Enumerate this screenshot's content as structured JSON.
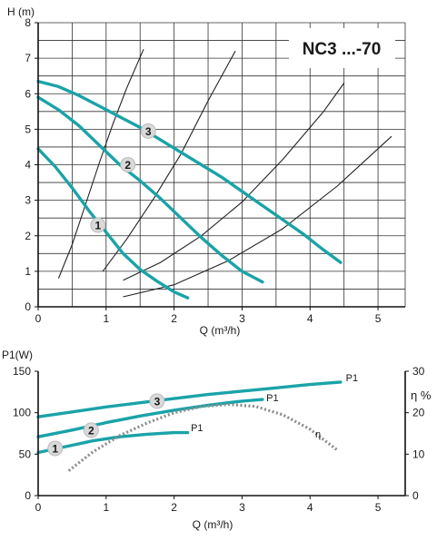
{
  "colors": {
    "pump": "#1aa3a8",
    "efficiency": "#8c8c8c",
    "system": "#222222",
    "marker_fill": "#d9d9d9"
  },
  "chart_data": [
    {
      "type": "line",
      "title": "NC3 ...-70",
      "xlabel": "Q (m³/h)",
      "ylabel": "H (m)",
      "xlim": [
        0,
        5.4
      ],
      "ylim": [
        0,
        8
      ],
      "xticks": [
        0,
        1,
        2,
        3,
        4,
        5
      ],
      "yticks": [
        0,
        1,
        2,
        3,
        4,
        5,
        6,
        7,
        8
      ],
      "grid": true,
      "series": [
        {
          "name": "1",
          "x": [
            0,
            0.25,
            0.5,
            0.75,
            1.0,
            1.25,
            1.5,
            1.75,
            2.0,
            2.2
          ],
          "y": [
            4.45,
            3.95,
            3.35,
            2.7,
            2.1,
            1.5,
            1.05,
            0.72,
            0.42,
            0.25
          ]
        },
        {
          "name": "2",
          "x": [
            0,
            0.3,
            0.6,
            0.9,
            1.2,
            1.5,
            1.8,
            2.1,
            2.4,
            2.7,
            3.0,
            3.3
          ],
          "y": [
            5.9,
            5.55,
            5.1,
            4.55,
            4.0,
            3.55,
            3.05,
            2.5,
            1.95,
            1.45,
            1.0,
            0.7
          ]
        },
        {
          "name": "3",
          "x": [
            0,
            0.3,
            0.6,
            0.9,
            1.2,
            1.5,
            1.8,
            2.1,
            2.4,
            2.7,
            3.0,
            3.3,
            3.6,
            3.9,
            4.2,
            4.45
          ],
          "y": [
            6.35,
            6.2,
            5.95,
            5.65,
            5.35,
            5.05,
            4.7,
            4.35,
            4.0,
            3.65,
            3.25,
            2.85,
            2.45,
            2.05,
            1.6,
            1.25
          ]
        }
      ],
      "system_curves": [
        {
          "x": [
            0.3,
            0.5,
            0.7,
            0.9,
            1.1,
            1.3,
            1.55
          ],
          "y": [
            0.8,
            1.75,
            2.9,
            4.05,
            5.15,
            6.15,
            7.25
          ]
        },
        {
          "x": [
            0.95,
            1.3,
            1.7,
            2.1,
            2.5,
            2.9
          ],
          "y": [
            1.0,
            1.9,
            3.05,
            4.3,
            5.8,
            7.2
          ]
        },
        {
          "x": [
            1.25,
            1.8,
            2.4,
            3.0,
            3.6,
            4.2,
            4.5
          ],
          "y": [
            0.75,
            1.25,
            2.0,
            2.95,
            4.15,
            5.5,
            6.3
          ]
        },
        {
          "x": [
            1.25,
            2.0,
            2.8,
            3.6,
            4.4,
            5.2
          ],
          "y": [
            0.28,
            0.62,
            1.3,
            2.2,
            3.4,
            4.8
          ]
        }
      ],
      "series_markers": [
        {
          "label": "1",
          "x": 0.88,
          "y": 2.3
        },
        {
          "label": "2",
          "x": 1.32,
          "y": 4.0
        },
        {
          "label": "3",
          "x": 1.62,
          "y": 4.95
        }
      ]
    },
    {
      "type": "line",
      "xlabel": "Q (m³/h)",
      "ylabel": "P1(W)",
      "ylabel_right": "η %",
      "xlim": [
        0,
        5.4
      ],
      "ylim": [
        0,
        150
      ],
      "ylim_right": [
        0,
        30
      ],
      "xticks": [
        0,
        1,
        2,
        3,
        4,
        5
      ],
      "yticks": [
        0,
        50,
        100,
        150
      ],
      "yticks_right": [
        0,
        10,
        20,
        30
      ],
      "grid": false,
      "series": [
        {
          "name": "P1",
          "x": [
            0,
            0.4,
            0.8,
            1.2,
            1.6,
            2.0,
            2.2
          ],
          "y": [
            52,
            59,
            66,
            71,
            74,
            76,
            76
          ]
        },
        {
          "name": "P1",
          "x": [
            0,
            0.5,
            1.0,
            1.5,
            2.0,
            2.5,
            3.0,
            3.3
          ],
          "y": [
            71,
            79,
            88,
            96,
            103,
            109,
            114,
            116
          ]
        },
        {
          "name": "P1",
          "x": [
            0,
            0.5,
            1.0,
            1.5,
            2.0,
            2.5,
            3.0,
            3.5,
            4.0,
            4.45
          ],
          "y": [
            95,
            101,
            107,
            112,
            117,
            122,
            126,
            130,
            134,
            137
          ]
        },
        {
          "name": "η",
          "axis": "right",
          "x": [
            0.45,
            0.8,
            1.2,
            1.6,
            2.0,
            2.4,
            2.8,
            3.2,
            3.6,
            4.0,
            4.4
          ],
          "y": [
            6,
            10.5,
            14.5,
            17.5,
            20,
            21.5,
            22,
            21.5,
            19.5,
            16,
            11
          ]
        }
      ],
      "series_markers": [
        {
          "label": "1",
          "x": 0.25,
          "y": 57
        },
        {
          "label": "2",
          "x": 0.78,
          "y": 79
        },
        {
          "label": "3",
          "x": 1.75,
          "y": 114
        }
      ],
      "series_tags": [
        {
          "label": "P1",
          "x": 2.22,
          "y": 78,
          "series": 0
        },
        {
          "label": "P1",
          "x": 3.33,
          "y": 114,
          "series": 1
        },
        {
          "label": "P1",
          "x": 4.5,
          "y": 138,
          "series": 2
        },
        {
          "label": "η",
          "x": 4.05,
          "y": 14,
          "series": 3,
          "axis": "right"
        }
      ]
    }
  ]
}
